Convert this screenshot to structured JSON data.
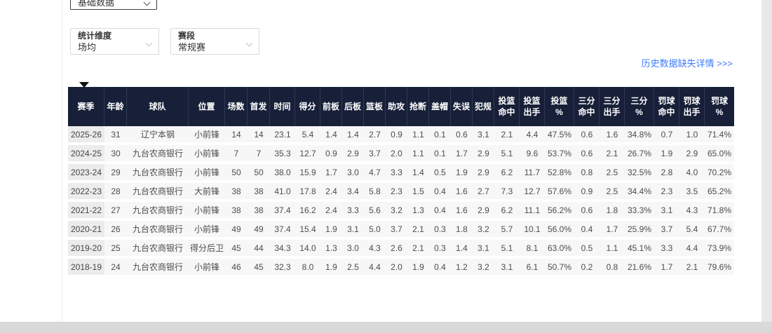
{
  "filters": {
    "category_select": {
      "value": "基础数据"
    },
    "dimension_select": {
      "label": "统计维度",
      "value": "场均"
    },
    "stage_select": {
      "label": "赛段",
      "value": "常规赛"
    }
  },
  "links": {
    "history_missing": "历史数据缺失详情 >>>"
  },
  "table": {
    "columns": [
      "赛季",
      "年龄",
      "球队",
      "位置",
      "场数",
      "首发",
      "时间",
      "得分",
      "前板",
      "后板",
      "篮板",
      "助攻",
      "抢断",
      "盖帽",
      "失误",
      "犯规",
      "投篮\n命中",
      "投篮\n出手",
      "投篮\n%",
      "三分\n命中",
      "三分\n出手",
      "三分\n%",
      "罚球\n命中",
      "罚球\n出手",
      "罚球\n%"
    ],
    "rows": [
      [
        "2025-26",
        "31",
        "辽宁本钢",
        "小前锋",
        "14",
        "14",
        "23.1",
        "5.4",
        "1.4",
        "1.4",
        "2.7",
        "0.9",
        "1.1",
        "0.1",
        "0.6",
        "3.1",
        "2.1",
        "4.4",
        "47.5%",
        "0.6",
        "1.6",
        "34.8%",
        "0.7",
        "1.0",
        "71.4%"
      ],
      [
        "2024-25",
        "30",
        "九台农商银行",
        "小前锋",
        "7",
        "7",
        "35.3",
        "12.7",
        "0.9",
        "2.9",
        "3.7",
        "2.0",
        "1.1",
        "0.1",
        "1.7",
        "2.9",
        "5.1",
        "9.6",
        "53.7%",
        "0.6",
        "2.1",
        "26.7%",
        "1.9",
        "2.9",
        "65.0%"
      ],
      [
        "2023-24",
        "29",
        "九台农商银行",
        "小前锋",
        "50",
        "50",
        "38.0",
        "15.9",
        "1.7",
        "3.0",
        "4.7",
        "3.3",
        "1.4",
        "0.5",
        "1.9",
        "2.9",
        "6.2",
        "11.7",
        "52.8%",
        "0.8",
        "2.5",
        "32.5%",
        "2.8",
        "4.0",
        "70.2%"
      ],
      [
        "2022-23",
        "28",
        "九台农商银行",
        "大前锋",
        "38",
        "38",
        "41.0",
        "17.8",
        "2.4",
        "3.4",
        "5.8",
        "2.3",
        "1.5",
        "0.4",
        "1.6",
        "2.7",
        "7.3",
        "12.7",
        "57.6%",
        "0.9",
        "2.5",
        "34.4%",
        "2.3",
        "3.5",
        "65.2%"
      ],
      [
        "2021-22",
        "27",
        "九台农商银行",
        "小前锋",
        "38",
        "38",
        "37.4",
        "16.2",
        "2.4",
        "3.3",
        "5.6",
        "3.2",
        "1.3",
        "0.4",
        "1.6",
        "2.9",
        "6.2",
        "11.1",
        "56.2%",
        "0.6",
        "1.8",
        "33.3%",
        "3.1",
        "4.3",
        "71.8%"
      ],
      [
        "2020-21",
        "26",
        "九台农商银行",
        "小前锋",
        "49",
        "49",
        "37.4",
        "15.4",
        "1.9",
        "3.1",
        "5.0",
        "3.7",
        "2.1",
        "0.3",
        "1.8",
        "3.2",
        "5.7",
        "10.1",
        "56.0%",
        "0.4",
        "1.7",
        "25.9%",
        "3.7",
        "5.4",
        "67.7%"
      ],
      [
        "2019-20",
        "25",
        "九台农商银行",
        "得分后卫",
        "45",
        "44",
        "34.3",
        "14.0",
        "1.3",
        "3.0",
        "4.3",
        "2.6",
        "2.1",
        "0.3",
        "1.4",
        "3.1",
        "5.1",
        "8.1",
        "63.0%",
        "0.5",
        "1.1",
        "45.1%",
        "3.3",
        "4.4",
        "73.9%"
      ],
      [
        "2018-19",
        "24",
        "九台农商银行",
        "小前锋",
        "46",
        "45",
        "32.3",
        "8.0",
        "1.9",
        "2.5",
        "4.4",
        "2.0",
        "1.9",
        "0.4",
        "1.2",
        "3.2",
        "3.1",
        "6.1",
        "50.7%",
        "0.2",
        "0.8",
        "21.6%",
        "1.7",
        "2.1",
        "79.6%"
      ]
    ]
  },
  "colors": {
    "accent_blue": "#3e7bfa",
    "table_header_bg": "#172038",
    "row_bg": "#f7f7f8",
    "season_cell_bg": "#ececec"
  }
}
